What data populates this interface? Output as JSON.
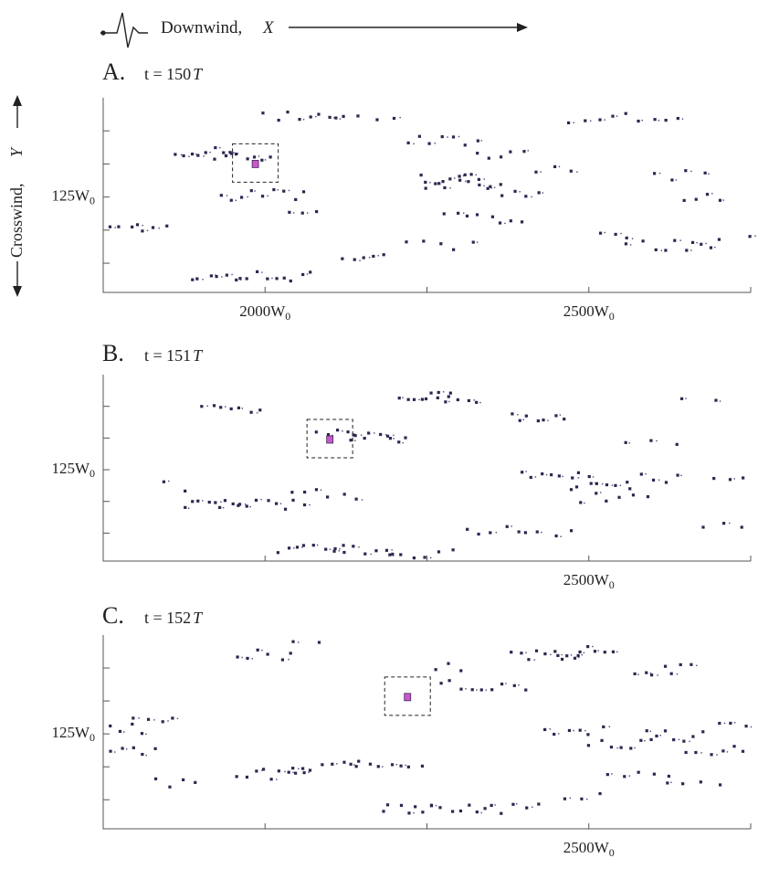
{
  "header": {
    "downwind_label": "Downwind,",
    "downwind_symbol": "X",
    "crosswind_label": "Crosswind,",
    "crosswind_symbol": "Y"
  },
  "colors": {
    "particle": "#2a2850",
    "highlight": "#cc55cc"
  },
  "chart_data": [
    {
      "type": "scatter",
      "panel_letter": "A.",
      "title_prefix": "t = 150",
      "title_suffix": "T",
      "ytick_label": "125W",
      "ytick_sub": "0",
      "xtick_labels": [
        {
          "value": 2000,
          "text": "2000W",
          "sub": "0"
        },
        {
          "value": 2500,
          "text": "2500W",
          "sub": "0"
        }
      ],
      "xlim": [
        1750,
        2750
      ],
      "ylim": [
        0,
        250
      ],
      "highlight": {
        "x": 1985,
        "y": 165
      },
      "clusters": [
        {
          "x0": 1860,
          "x1": 1950,
          "y": 180,
          "n": 8
        },
        {
          "x0": 1920,
          "x1": 2010,
          "y": 175,
          "n": 8
        },
        {
          "x0": 1930,
          "x1": 2060,
          "y": 125,
          "n": 9
        },
        {
          "x0": 1885,
          "x1": 1955,
          "y": 20,
          "n": 6
        },
        {
          "x0": 1960,
          "x1": 2070,
          "y": 20,
          "n": 9
        },
        {
          "x0": 2000,
          "x1": 2120,
          "y": 225,
          "n": 8
        },
        {
          "x0": 2110,
          "x1": 2200,
          "y": 225,
          "n": 4
        },
        {
          "x0": 2120,
          "x1": 2180,
          "y": 45,
          "n": 5
        },
        {
          "x0": 2220,
          "x1": 2330,
          "y": 195,
          "n": 7
        },
        {
          "x0": 2240,
          "x1": 2330,
          "y": 145,
          "n": 9
        },
        {
          "x0": 2250,
          "x1": 2360,
          "y": 140,
          "n": 8
        },
        {
          "x0": 2280,
          "x1": 2400,
          "y": 95,
          "n": 8
        },
        {
          "x0": 2220,
          "x1": 2320,
          "y": 60,
          "n": 5
        },
        {
          "x0": 2330,
          "x1": 2400,
          "y": 175,
          "n": 5
        },
        {
          "x0": 2350,
          "x1": 2420,
          "y": 130,
          "n": 5
        },
        {
          "x0": 2420,
          "x1": 2470,
          "y": 155,
          "n": 3
        },
        {
          "x0": 2540,
          "x1": 2640,
          "y": 225,
          "n": 6
        },
        {
          "x0": 2600,
          "x1": 2680,
          "y": 150,
          "n": 4
        },
        {
          "x0": 2650,
          "x1": 2700,
          "y": 125,
          "n": 4
        },
        {
          "x0": 2620,
          "x1": 2690,
          "y": 60,
          "n": 6
        },
        {
          "x0": 1760,
          "x1": 1810,
          "y": 80,
          "n": 4
        },
        {
          "x0": 1800,
          "x1": 1850,
          "y": 90,
          "n": 3
        },
        {
          "x0": 2040,
          "x1": 2080,
          "y": 105,
          "n": 3
        },
        {
          "x0": 2520,
          "x1": 2560,
          "y": 70,
          "n": 3
        },
        {
          "x0": 2560,
          "x1": 2600,
          "y": 60,
          "n": 3
        },
        {
          "x0": 2700,
          "x1": 2745,
          "y": 70,
          "n": 2
        },
        {
          "x0": 2470,
          "x1": 2520,
          "y": 215,
          "n": 3
        }
      ]
    },
    {
      "type": "scatter",
      "panel_letter": "B.",
      "title_prefix": "t = 151",
      "title_suffix": "T",
      "ytick_label": "125W",
      "ytick_sub": "0",
      "xtick_labels": [
        {
          "value": 2500,
          "text": "2500W",
          "sub": "0"
        }
      ],
      "xlim": [
        1750,
        2750
      ],
      "ylim": [
        0,
        250
      ],
      "highlight": {
        "x": 2100,
        "y": 163
      },
      "clusters": [
        {
          "x0": 1905,
          "x1": 1990,
          "y": 205,
          "n": 7
        },
        {
          "x0": 2080,
          "x1": 2140,
          "y": 175,
          "n": 5
        },
        {
          "x0": 2130,
          "x1": 2220,
          "y": 165,
          "n": 9
        },
        {
          "x0": 2210,
          "x1": 2290,
          "y": 220,
          "n": 8
        },
        {
          "x0": 2250,
          "x1": 2330,
          "y": 215,
          "n": 6
        },
        {
          "x0": 2380,
          "x1": 2460,
          "y": 195,
          "n": 7
        },
        {
          "x0": 2400,
          "x1": 2500,
          "y": 115,
          "n": 8
        },
        {
          "x0": 2470,
          "x1": 2560,
          "y": 100,
          "n": 7
        },
        {
          "x0": 2490,
          "x1": 2590,
          "y": 85,
          "n": 6
        },
        {
          "x0": 1880,
          "x1": 1960,
          "y": 75,
          "n": 9
        },
        {
          "x0": 1960,
          "x1": 2060,
          "y": 75,
          "n": 8
        },
        {
          "x0": 2040,
          "x1": 2140,
          "y": 90,
          "n": 6
        },
        {
          "x0": 2020,
          "x1": 2120,
          "y": 15,
          "n": 8
        },
        {
          "x0": 2110,
          "x1": 2200,
          "y": 15,
          "n": 7
        },
        {
          "x0": 2190,
          "x1": 2290,
          "y": 10,
          "n": 6
        },
        {
          "x0": 2310,
          "x1": 2390,
          "y": 40,
          "n": 5
        },
        {
          "x0": 2400,
          "x1": 2470,
          "y": 40,
          "n": 4
        },
        {
          "x0": 2560,
          "x1": 2640,
          "y": 110,
          "n": 5
        },
        {
          "x0": 2690,
          "x1": 2740,
          "y": 105,
          "n": 3
        },
        {
          "x0": 2680,
          "x1": 2740,
          "y": 45,
          "n": 3
        },
        {
          "x0": 1840,
          "x1": 1880,
          "y": 100,
          "n": 2
        },
        {
          "x0": 2560,
          "x1": 2640,
          "y": 160,
          "n": 3
        },
        {
          "x0": 2640,
          "x1": 2700,
          "y": 215,
          "n": 2
        }
      ]
    },
    {
      "type": "scatter",
      "panel_letter": "C.",
      "title_prefix": "t = 152",
      "title_suffix": "T",
      "ytick_label": "125W",
      "ytick_sub": "0",
      "xtick_labels": [
        {
          "value": 2500,
          "text": "2500W",
          "sub": "0"
        }
      ],
      "xlim": [
        1750,
        2750
      ],
      "ylim": [
        0,
        250
      ],
      "highlight": {
        "x": 2220,
        "y": 170
      },
      "clusters": [
        {
          "x0": 1960,
          "x1": 2040,
          "y": 225,
          "n": 6
        },
        {
          "x0": 2040,
          "x1": 2080,
          "y": 245,
          "n": 2
        },
        {
          "x0": 2380,
          "x1": 2490,
          "y": 225,
          "n": 9
        },
        {
          "x0": 2450,
          "x1": 2540,
          "y": 230,
          "n": 7
        },
        {
          "x0": 2570,
          "x1": 2660,
          "y": 205,
          "n": 7
        },
        {
          "x0": 2270,
          "x1": 2400,
          "y": 185,
          "n": 9
        },
        {
          "x0": 2260,
          "x1": 2300,
          "y": 210,
          "n": 3
        },
        {
          "x0": 1760,
          "x1": 1810,
          "y": 130,
          "n": 4
        },
        {
          "x0": 1800,
          "x1": 1860,
          "y": 140,
          "n": 4
        },
        {
          "x0": 1760,
          "x1": 1830,
          "y": 100,
          "n": 5
        },
        {
          "x0": 1830,
          "x1": 1890,
          "y": 60,
          "n": 4
        },
        {
          "x0": 1960,
          "x1": 2060,
          "y": 70,
          "n": 9
        },
        {
          "x0": 2040,
          "x1": 2140,
          "y": 80,
          "n": 7
        },
        {
          "x0": 2130,
          "x1": 2240,
          "y": 85,
          "n": 8
        },
        {
          "x0": 2180,
          "x1": 2260,
          "y": 25,
          "n": 7
        },
        {
          "x0": 2260,
          "x1": 2340,
          "y": 25,
          "n": 7
        },
        {
          "x0": 2350,
          "x1": 2420,
          "y": 25,
          "n": 5
        },
        {
          "x0": 2430,
          "x1": 2520,
          "y": 125,
          "n": 6
        },
        {
          "x0": 2500,
          "x1": 2600,
          "y": 110,
          "n": 7
        },
        {
          "x0": 2590,
          "x1": 2680,
          "y": 120,
          "n": 7
        },
        {
          "x0": 2650,
          "x1": 2740,
          "y": 100,
          "n": 6
        },
        {
          "x0": 2530,
          "x1": 2620,
          "y": 70,
          "n": 5
        },
        {
          "x0": 2620,
          "x1": 2700,
          "y": 55,
          "n": 4
        },
        {
          "x0": 2700,
          "x1": 2745,
          "y": 130,
          "n": 3
        },
        {
          "x0": 2460,
          "x1": 2520,
          "y": 45,
          "n": 3
        }
      ]
    }
  ]
}
